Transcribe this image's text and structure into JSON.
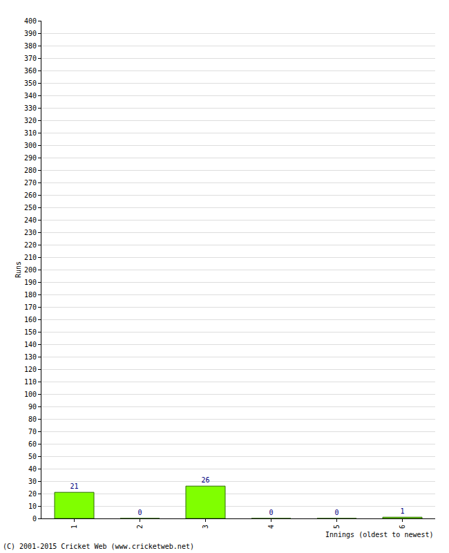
{
  "chart_data": {
    "type": "bar",
    "x_label": "Innings (oldest to newest)",
    "y_label": "Runs",
    "annotations": [
      "(C) 2001-2015 Cricket Web (www.cricketweb.net)"
    ],
    "categories": [
      "1",
      "2",
      "3",
      "4",
      "5",
      "6"
    ],
    "values": [
      21,
      0,
      26,
      0,
      0,
      1
    ],
    "color": "#80ff00",
    "ylim": [
      0,
      400
    ],
    "yticks": [
      0,
      10,
      20,
      30,
      40,
      50,
      60,
      70,
      80,
      90,
      100,
      110,
      120,
      130,
      140,
      150,
      160,
      170,
      180,
      190,
      200,
      210,
      220,
      230,
      240,
      250,
      260,
      270,
      280,
      290,
      300,
      310,
      320,
      330,
      340,
      350,
      360,
      370,
      380,
      390,
      400
    ],
    "grid": true,
    "data_labels": true
  }
}
